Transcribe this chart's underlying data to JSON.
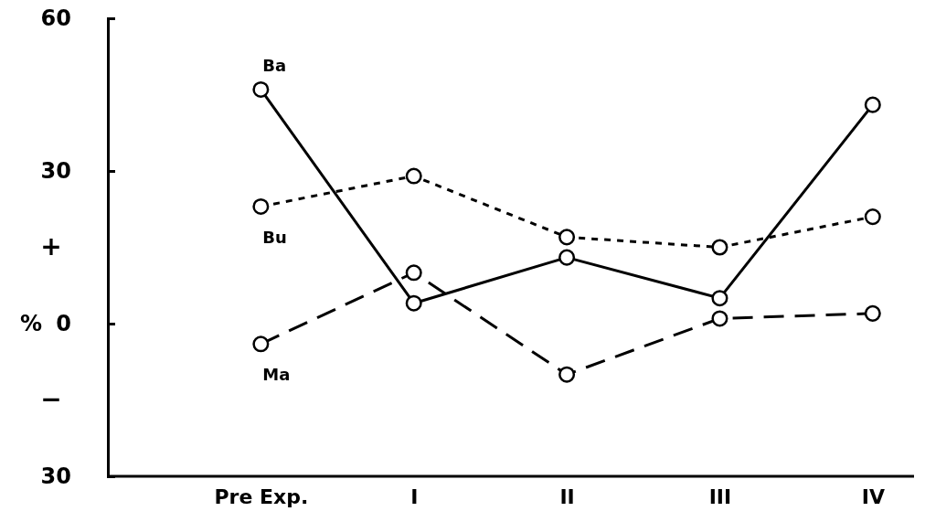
{
  "chart_data": {
    "type": "line",
    "ylabel": "%",
    "categories": [
      "Pre Exp.",
      "I",
      "II",
      "III",
      "IV"
    ],
    "series": [
      {
        "name": "Ba",
        "color": "#000000",
        "line_style": "solid",
        "values": [
          46,
          4,
          13,
          5,
          43
        ]
      },
      {
        "name": "Bu",
        "color": "#000000",
        "line_style": "dotted",
        "values": [
          23,
          29,
          17,
          15,
          21
        ]
      },
      {
        "name": "Ma",
        "color": "#000000",
        "line_style": "dashed",
        "values": [
          -4,
          10,
          -10,
          1,
          2
        ]
      }
    ],
    "ylim": [
      -30,
      60
    ],
    "yticks": [
      60,
      30,
      0,
      {
        "value": -30,
        "label": "30"
      }
    ],
    "annotations": [
      "+",
      "−"
    ],
    "marker": "circle",
    "grid": false,
    "legend": false
  }
}
